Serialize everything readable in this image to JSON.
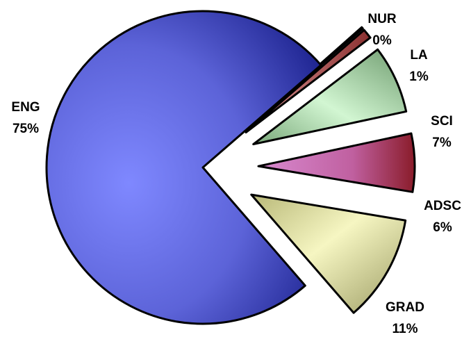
{
  "chart_data": {
    "type": "pie",
    "title": "",
    "legend": "none",
    "slices": [
      {
        "category": "ENG",
        "value": 75,
        "label": "75%",
        "color": "#6f78f0",
        "exploded": false
      },
      {
        "category": "NUR",
        "value": 0,
        "label": "0%",
        "color": "#e8e8e8",
        "exploded": true
      },
      {
        "category": "LA",
        "value": 1,
        "label": "1%",
        "color": "#c06a6a",
        "exploded": true
      },
      {
        "category": "SCI",
        "value": 7,
        "label": "7%",
        "color": "#b9e8b9",
        "exploded": true
      },
      {
        "category": "ADSC",
        "value": 6,
        "label": "6%",
        "color": "#c4689c",
        "exploded": true
      },
      {
        "category": "GRAD",
        "value": 11,
        "label": "11%",
        "color": "#e6e6a6",
        "exploded": true
      }
    ]
  }
}
